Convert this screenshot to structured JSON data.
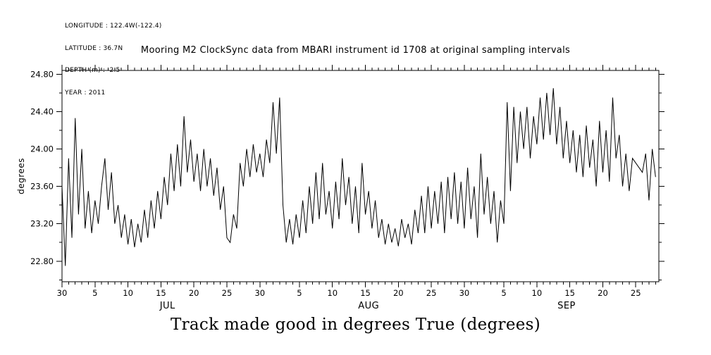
{
  "page": {
    "background": "#ffffff",
    "foreground": "#000000"
  },
  "metadata": {
    "lines": [
      "LONGITUDE : 122.4W(-122.4)",
      "LATITUDE : 36.7N",
      "DEPTH (m) : -2.5",
      "YEAR : 2011"
    ]
  },
  "chart_data": {
    "type": "line",
    "title": "Mooring M2 ClockSync data from MBARI instrument id 1708 at original sampling intervals",
    "xlabel": "Track made good in degrees True (degrees)",
    "ylabel": "degrees",
    "line_color": "#000000",
    "grid": false,
    "legend": "none",
    "ylim": [
      22.58,
      24.84
    ],
    "xlim_days": [
      0,
      90.5
    ],
    "y_ticks": {
      "major": [
        22.8,
        23.2,
        23.6,
        24.0,
        24.4,
        24.8
      ],
      "major_labels": [
        "22.80",
        "23.20",
        "23.60",
        "24.00",
        "24.40",
        "24.80"
      ],
      "minor_step": 0.2
    },
    "x_ticks": {
      "major_days": [
        0,
        5,
        10,
        15,
        20,
        25,
        30,
        36,
        41,
        46,
        51,
        56,
        61,
        67,
        72,
        77,
        82,
        87
      ],
      "major_labels": [
        "30",
        "5",
        "10",
        "15",
        "20",
        "25",
        "30",
        "5",
        "10",
        "15",
        "20",
        "25",
        "30",
        "5",
        "10",
        "15",
        "20",
        "25"
      ],
      "minor_step_days": 1
    },
    "month_labels": [
      {
        "label": "JUL",
        "day": 16
      },
      {
        "label": "AUG",
        "day": 46.5
      },
      {
        "label": "SEP",
        "day": 76.5
      }
    ],
    "series": [
      {
        "name": "track-made-good",
        "x_start_day": 0,
        "x_step_days": 0.5,
        "values": [
          23.6,
          22.75,
          23.9,
          23.05,
          24.33,
          23.3,
          24.0,
          23.15,
          23.55,
          23.1,
          23.45,
          23.2,
          23.6,
          23.9,
          23.35,
          23.75,
          23.2,
          23.4,
          23.05,
          23.3,
          22.98,
          23.25,
          22.95,
          23.2,
          23.0,
          23.35,
          23.05,
          23.45,
          23.15,
          23.55,
          23.25,
          23.7,
          23.4,
          23.95,
          23.55,
          24.05,
          23.6,
          24.35,
          23.75,
          24.1,
          23.65,
          23.95,
          23.55,
          24.0,
          23.6,
          23.9,
          23.5,
          23.8,
          23.35,
          23.6,
          23.05,
          23.0,
          23.3,
          23.15,
          23.85,
          23.6,
          24.0,
          23.7,
          24.05,
          23.75,
          23.95,
          23.7,
          24.1,
          23.85,
          24.5,
          23.95,
          24.55,
          23.4,
          23.0,
          23.25,
          22.98,
          23.3,
          23.05,
          23.45,
          23.1,
          23.6,
          23.2,
          23.75,
          23.25,
          23.85,
          23.3,
          23.55,
          23.15,
          23.65,
          23.25,
          23.9,
          23.4,
          23.7,
          23.2,
          23.6,
          23.1,
          23.85,
          23.3,
          23.55,
          23.15,
          23.45,
          23.05,
          23.25,
          22.98,
          23.2,
          23.0,
          23.15,
          22.96,
          23.25,
          23.05,
          23.2,
          22.98,
          23.35,
          23.1,
          23.5,
          23.1,
          23.6,
          23.15,
          23.55,
          23.2,
          23.65,
          23.1,
          23.7,
          23.25,
          23.75,
          23.2,
          23.65,
          23.15,
          23.8,
          23.25,
          23.6,
          23.05,
          23.95,
          23.3,
          23.7,
          23.2,
          23.55,
          23.0,
          23.45,
          23.2,
          24.5,
          23.55,
          24.45,
          23.85,
          24.4,
          24.0,
          24.45,
          23.9,
          24.35,
          24.05,
          24.55,
          24.1,
          24.6,
          24.15,
          24.65,
          24.05,
          24.45,
          23.9,
          24.3,
          23.85,
          24.2,
          23.75,
          24.15,
          23.7,
          24.25,
          23.8,
          24.1,
          23.6,
          24.3,
          23.75,
          24.2,
          23.65,
          24.55,
          23.9,
          24.15,
          23.6,
          23.95,
          23.55,
          23.9,
          23.85,
          23.8,
          23.75,
          23.95,
          23.45,
          24.0,
          23.7
        ]
      }
    ]
  }
}
